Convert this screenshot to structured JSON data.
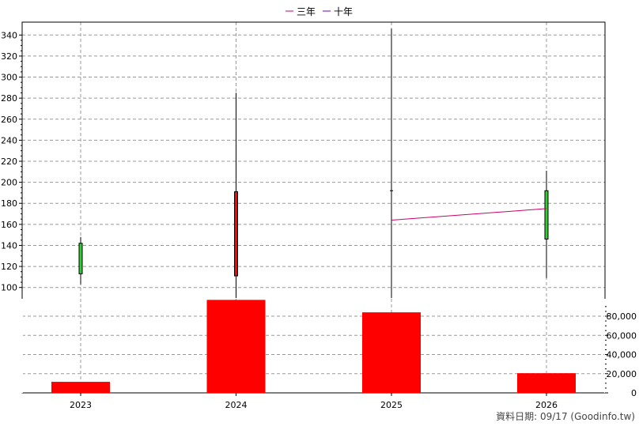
{
  "chart_data": {
    "type": "candlestick-volume",
    "categories": [
      "2023",
      "2024",
      "2025",
      "2026"
    ],
    "legend": [
      {
        "name": "三年",
        "color": "#cc0066"
      },
      {
        "name": "十年",
        "color": "#6600cc"
      }
    ],
    "legend_placement": "top-center",
    "price_axis": {
      "min": 90,
      "max": 350,
      "ticks": [
        100,
        120,
        140,
        160,
        180,
        200,
        220,
        240,
        260,
        280,
        300,
        320,
        340
      ]
    },
    "candles": [
      {
        "x": "2023",
        "open": 113,
        "close": 142,
        "high": 148,
        "low": 103,
        "direction": "up"
      },
      {
        "x": "2024",
        "open": 191,
        "close": 111,
        "high": 285,
        "low": 90,
        "direction": "down"
      },
      {
        "x": "2025",
        "open": 192,
        "close": 192,
        "high": 346,
        "low": 90,
        "direction": "flat"
      },
      {
        "x": "2026",
        "open": 146,
        "close": 192,
        "high": 211,
        "low": 109,
        "direction": "up"
      }
    ],
    "moving_average_line": {
      "name": "三年",
      "points": [
        {
          "x": "2025",
          "y": 164
        },
        {
          "x": "2026",
          "y": 175
        }
      ]
    },
    "volume_axis": {
      "min": 0,
      "max": 95000,
      "ticks": [
        0,
        20000,
        40000,
        60000,
        80000
      ],
      "tick_labels": [
        "0",
        "20,000",
        "40,000",
        "60,000",
        "80,000"
      ]
    },
    "volume": [
      {
        "x": "2023",
        "value": 11500
      },
      {
        "x": "2024",
        "value": 97000
      },
      {
        "x": "2025",
        "value": 84000
      },
      {
        "x": "2026",
        "value": 20500
      }
    ],
    "grid": true,
    "colors": {
      "up": "#33cc33",
      "down": "#ff0000",
      "volume": "#ff0000",
      "grid": "#999999"
    }
  },
  "footer": "資料日期: 09/17  (Goodinfo.tw)"
}
